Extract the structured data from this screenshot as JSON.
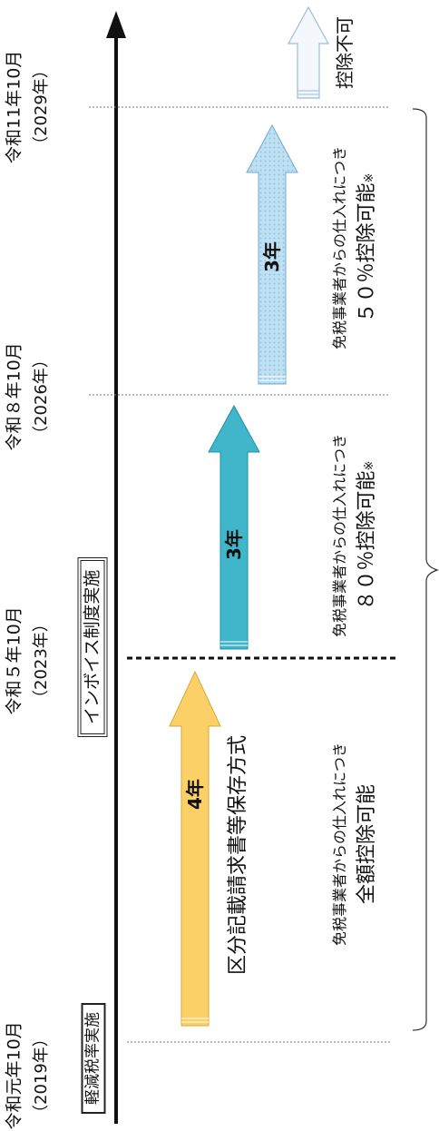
{
  "timeline": {
    "dates": [
      {
        "era": "令和元年10月",
        "year": "（2019年）"
      },
      {
        "era": "令和５年10月",
        "year": "（2023年）"
      },
      {
        "era": "令和８年10月",
        "year": "（2026年）"
      },
      {
        "era": "令和11年10月",
        "year": "（2029年）"
      }
    ],
    "milestones": {
      "reduced_tax_rate": "軽減税率実施",
      "invoice_start": "インボイス制度実施"
    }
  },
  "periods": [
    {
      "arrow_label": "4年",
      "system": "区分記載請求書等保存方式",
      "note": "免税事業者からの仕入れにつき",
      "deduction": "全額控除可能",
      "color": "#fbd067"
    },
    {
      "arrow_label": "3年",
      "note": "免税事業者からの仕入れにつき",
      "deduction": "８０％控除可能",
      "footnote_mark": "※",
      "color": "#3fb6c9"
    },
    {
      "arrow_label": "3年",
      "note": "免税事業者からの仕入れにつき",
      "deduction": "５０％控除可能",
      "footnote_mark": "※",
      "color": "#b9dcf1"
    },
    {
      "deduction": "控除不可",
      "color": "#dbe8f4"
    }
  ]
}
